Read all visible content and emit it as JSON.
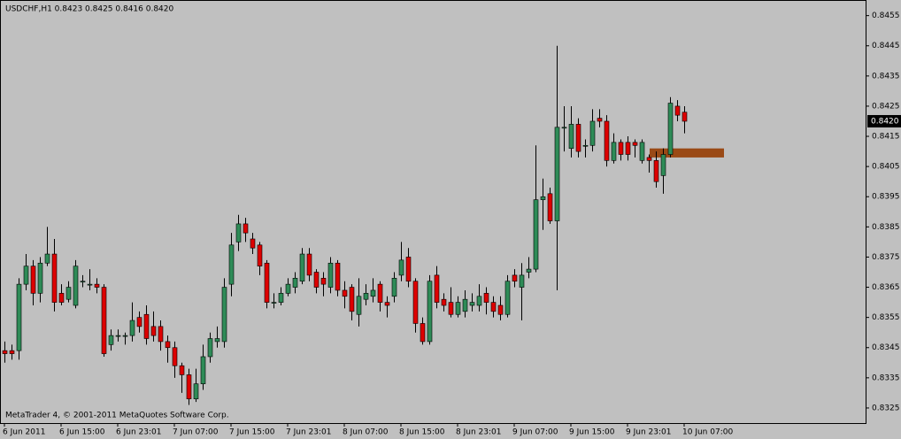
{
  "chart_data": {
    "type": "candlestick",
    "title": "USDCHF,H1  0.8423 0.8425 0.8416 0.8420",
    "footer": "MetaTrader 4, © 2001-2011 MetaQuotes Software Corp.",
    "categories": [
      "6 Jun 2011",
      null,
      null,
      null,
      null,
      null,
      null,
      null,
      "6 Jun 15:00",
      null,
      null,
      null,
      null,
      null,
      null,
      null,
      "6 Jun 23:01",
      null,
      null,
      null,
      null,
      null,
      null,
      null,
      "7 Jun 07:00",
      null,
      null,
      null,
      null,
      null,
      null,
      null,
      "7 Jun 15:00",
      null,
      null,
      null,
      null,
      null,
      null,
      null,
      "7 Jun 23:01",
      null,
      null,
      null,
      null,
      null,
      null,
      null,
      "8 Jun 07:00",
      null,
      null,
      null,
      null,
      null,
      null,
      null,
      "8 Jun 15:00",
      null,
      null,
      null,
      null,
      null,
      null,
      null,
      "8 Jun 23:01",
      null,
      null,
      null,
      null,
      null,
      null,
      null,
      "9 Jun 07:00",
      null,
      null,
      null,
      null,
      null,
      null,
      null,
      "9 Jun 15:00",
      null,
      null,
      null,
      null,
      null,
      null,
      null,
      "9 Jun 23:01",
      null,
      null,
      null,
      null,
      null,
      null,
      null,
      "10 Jun 07:00"
    ],
    "open": [
      0.8344,
      0.8344,
      0.8344,
      0.8366,
      0.8372,
      0.8363,
      0.8373,
      0.8376,
      0.8363,
      0.8361,
      0.8359,
      0.8367,
      0.8366,
      0.8366,
      0.8365,
      0.8346,
      0.8349,
      0.8349,
      0.8349,
      0.8355,
      0.8356,
      0.8352,
      0.8352,
      0.8347,
      0.8345,
      0.8339,
      0.8336,
      0.8328,
      0.8333,
      0.8342,
      0.8347,
      0.8347,
      0.8366,
      0.838,
      0.8386,
      0.8381,
      0.8379,
      0.8373,
      0.836,
      0.836,
      0.8363,
      0.8365,
      0.8367,
      0.8376,
      0.837,
      0.8368,
      0.8365,
      0.8373,
      0.8364,
      0.8365,
      0.8356,
      0.8361,
      0.8362,
      0.8366,
      0.836,
      0.8362,
      0.8369,
      0.8375,
      0.8367,
      0.8353,
      0.8347,
      0.8369,
      0.8361,
      0.836,
      0.8356,
      0.8357,
      0.8359,
      0.8359,
      0.8363,
      0.836,
      0.8359,
      0.8356,
      0.8369,
      0.8365,
      0.837,
      0.8371,
      0.8394,
      0.8396,
      0.8387,
      0.8418,
      0.8411,
      0.8419,
      0.8412,
      0.8412,
      0.8421,
      0.842,
      0.8407,
      0.8413,
      0.8413,
      0.8413,
      0.8407,
      0.8408,
      0.8407,
      0.8402,
      0.8409,
      0.8425,
      0.8423
    ],
    "high": [
      0.8347,
      0.8346,
      0.8368,
      0.8376,
      0.8374,
      0.8375,
      0.8385,
      0.8381,
      0.8366,
      0.8367,
      0.8374,
      0.8369,
      0.8371,
      0.8368,
      0.8366,
      0.8351,
      0.8351,
      0.835,
      0.836,
      0.8357,
      0.8359,
      0.8357,
      0.8354,
      0.8349,
      0.8347,
      0.834,
      0.8338,
      0.8338,
      0.8346,
      0.835,
      0.8352,
      0.8368,
      0.8383,
      0.8389,
      0.8388,
      0.8383,
      0.838,
      0.8374,
      0.8363,
      0.8365,
      0.8368,
      0.837,
      0.8378,
      0.8378,
      0.8371,
      0.837,
      0.8375,
      0.8374,
      0.8367,
      0.8366,
      0.8368,
      0.8366,
      0.8368,
      0.8367,
      0.8362,
      0.837,
      0.838,
      0.8378,
      0.8368,
      0.8355,
      0.8369,
      0.8372,
      0.8363,
      0.8365,
      0.8362,
      0.8364,
      0.8363,
      0.8366,
      0.8365,
      0.8362,
      0.8362,
      0.8369,
      0.8371,
      0.8373,
      0.8375,
      0.8412,
      0.8401,
      0.8398,
      0.8445,
      0.8425,
      0.8425,
      0.8421,
      0.8414,
      0.8424,
      0.8424,
      0.8422,
      0.8416,
      0.8414,
      0.8415,
      0.8414,
      0.8414,
      0.8409,
      0.841,
      0.8411,
      0.8428,
      0.8427,
      0.8425
    ],
    "low": [
      0.834,
      0.8341,
      0.8341,
      0.8364,
      0.8359,
      0.836,
      0.8372,
      0.8357,
      0.8359,
      0.836,
      0.8358,
      0.8365,
      0.8364,
      0.8363,
      0.8342,
      0.8344,
      0.8347,
      0.8346,
      0.8347,
      0.835,
      0.8346,
      0.8347,
      0.8344,
      0.834,
      0.8335,
      0.833,
      0.8326,
      0.8327,
      0.8331,
      0.834,
      0.8345,
      0.8345,
      0.8362,
      0.8377,
      0.838,
      0.8376,
      0.8369,
      0.8358,
      0.8358,
      0.8359,
      0.8362,
      0.8363,
      0.8366,
      0.8367,
      0.8363,
      0.8362,
      0.8363,
      0.8362,
      0.8358,
      0.8354,
      0.8352,
      0.8359,
      0.836,
      0.8357,
      0.8355,
      0.836,
      0.8367,
      0.8365,
      0.835,
      0.8346,
      0.8346,
      0.8358,
      0.8357,
      0.8355,
      0.8355,
      0.8355,
      0.8357,
      0.8357,
      0.8356,
      0.8355,
      0.8354,
      0.8355,
      0.8365,
      0.8354,
      0.8368,
      0.837,
      0.8384,
      0.8386,
      0.8364,
      0.841,
      0.8408,
      0.8408,
      0.8408,
      0.841,
      0.8418,
      0.8405,
      0.8406,
      0.8407,
      0.8407,
      0.8408,
      0.8406,
      0.8403,
      0.8398,
      0.8396,
      0.8408,
      0.842,
      0.8416
    ],
    "close": [
      0.8343,
      0.8343,
      0.8366,
      0.8372,
      0.8363,
      0.8373,
      0.8376,
      0.836,
      0.836,
      0.8365,
      0.8372,
      0.8367,
      0.8366,
      0.8365,
      0.8343,
      0.8349,
      0.8349,
      0.8349,
      0.8354,
      0.8352,
      0.8348,
      0.8349,
      0.8347,
      0.8345,
      0.8339,
      0.8336,
      0.8328,
      0.8333,
      0.8342,
      0.8348,
      0.8348,
      0.8365,
      0.8379,
      0.8386,
      0.8383,
      0.8378,
      0.8372,
      0.836,
      0.836,
      0.8363,
      0.8366,
      0.8368,
      0.8376,
      0.8369,
      0.8365,
      0.8366,
      0.8373,
      0.8364,
      0.8362,
      0.8357,
      0.8362,
      0.8363,
      0.8364,
      0.836,
      0.8359,
      0.8368,
      0.8374,
      0.8367,
      0.8353,
      0.8347,
      0.8367,
      0.836,
      0.8359,
      0.8356,
      0.836,
      0.8361,
      0.836,
      0.8362,
      0.836,
      0.8357,
      0.8356,
      0.8367,
      0.8367,
      0.8369,
      0.8371,
      0.8394,
      0.8395,
      0.8387,
      0.8418,
      0.8418,
      0.8419,
      0.841,
      0.8412,
      0.842,
      0.842,
      0.8407,
      0.8413,
      0.8409,
      0.8409,
      0.8412,
      0.8413,
      0.8407,
      0.84,
      0.8409,
      0.8426,
      0.8422,
      0.842
    ],
    "up_color": "#2e8b57",
    "down_color": "#dd0000",
    "wick_color": "#000000",
    "background": "#c0c0c0",
    "zone": {
      "from": 0.8408,
      "to": 0.8411,
      "color": "#9a4a16"
    },
    "current_price": {
      "value": 0.842,
      "label": "0.8420"
    },
    "ylim": [
      0.832,
      0.8459
    ],
    "yticks": [
      0.8455,
      0.8445,
      0.8435,
      0.8425,
      0.8415,
      0.8405,
      0.8395,
      0.8385,
      0.8375,
      0.8365,
      0.8355,
      0.8345,
      0.8335,
      0.8325
    ],
    "grid": false
  }
}
